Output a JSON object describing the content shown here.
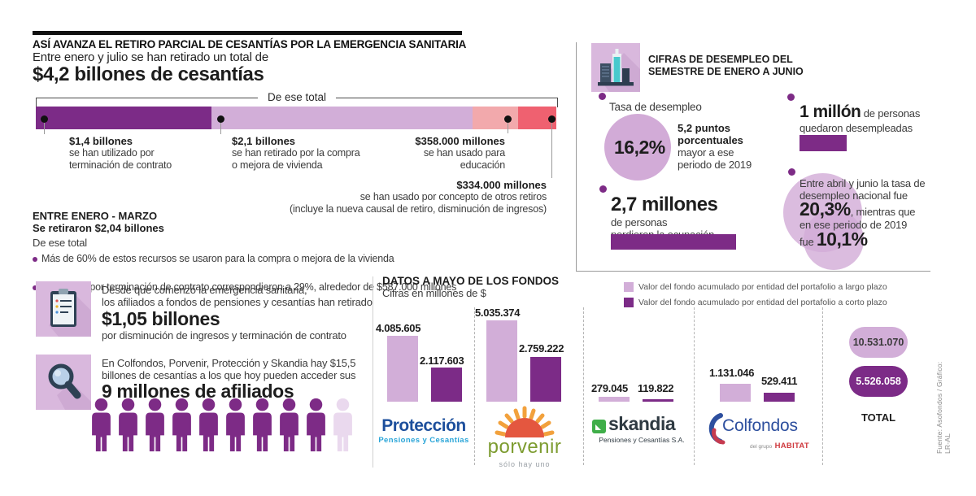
{
  "header": {
    "title": "ASÍ AVANZA EL RETIRO PARCIAL DE CESANTÍAS POR LA EMERGENCIA SANITARIA",
    "subtitle": "Entre enero y julio se han retirado un total de",
    "total": "$4,2 billones de cesantías"
  },
  "withdrawals": {
    "bracket_label": "De ese total",
    "segments": [
      {
        "amount": "$1,4 billones",
        "desc": [
          "se han utilizado por",
          "terminación de contrato"
        ]
      },
      {
        "amount": "$2,1 billones",
        "desc": [
          "se han retirado por la compra",
          "o mejora de vivienda"
        ]
      },
      {
        "amount": "$358.000 millones",
        "desc": [
          "se han usado para",
          "educación"
        ]
      },
      {
        "amount": "$334.000 millones",
        "desc": [
          "se han usado por concepto de otros retiros",
          "(incluye la nueva causal de retiro, disminución de ingresos)"
        ]
      }
    ]
  },
  "q1": {
    "title": "ENTRE ENERO - MARZO",
    "amount_line": "Se retiraron $2,04 billones",
    "subtitle": "De ese total",
    "bullets": [
      "Más de 60% de estos recursos se usaron para la compra o mejora de la vivienda",
      "Los retiros por terminación de contrato correspondieron a 29%, alrededor de $587.000 millones"
    ]
  },
  "unemployment": {
    "title_lines": [
      "CIFRAS DE DESEMPLEO DEL",
      "SEMESTRE DE ENERO A JUNIO"
    ],
    "rate": {
      "label": "Tasa de desempleo",
      "value": "16,2%",
      "bold1": "5,2 puntos",
      "bold2": "porcentuales",
      "l1": "mayor a ese",
      "l2": "periodo de 2019"
    },
    "million": {
      "big": "1 millón",
      "rest": " de personas",
      "line2": "quedaron desempleadas"
    },
    "occupation": {
      "big": "2,7 millones",
      "l1": "de personas",
      "l2": "perdieron la ocupación"
    },
    "q2": {
      "l1": "Entre abril y junio la tasa de",
      "l2": "desempleo nacional fue",
      "big1": "20,3%",
      "mid": ", mientras que",
      "l3": "en ese periodo de 2019",
      "pre": "fue ",
      "big2": "10,1%"
    }
  },
  "cards": [
    {
      "icon": "clipboard-icon",
      "l1": "Desde que comenzó la emergencia sanitaria,",
      "l2": "los afiliados a fondos de pensiones y cesantías han retirado",
      "big": "$1,05 billones",
      "l3": "por disminución de ingresos y terminación de contrato"
    },
    {
      "icon": "magnifier-icon",
      "l1": "En Colfondos, Porvenir, Protección y Skandia hay $15,5",
      "l2": "billones de cesantías a los que hoy pueden acceder sus",
      "big": "9 millones de afiliados"
    }
  ],
  "people": {
    "dark": 9,
    "light": 1,
    "dark_color": "#7d2b86",
    "light_color": "#ead9ee"
  },
  "funds": {
    "title": "DATOS A MAYO DE LOS FONDOS",
    "subtitle": "Cifras en millones de $",
    "total_label": "TOTAL",
    "logos": {
      "proteccion": {
        "name": "Protección",
        "sub": "Pensiones y Cesantías",
        "color": "#1d4f9c",
        "sub_color": "#2aa5d8"
      },
      "porvenir": {
        "name": "porvenir",
        "sub": "sólo hay uno",
        "color": "#7d9c30"
      },
      "skandia": {
        "name": "skandia",
        "sub": "Pensiones y Cesantías S.A.",
        "color": "#2f3a42",
        "icon_color": "#3fae49"
      },
      "colfondos": {
        "name": "Colfondos",
        "sub_small": "del grupo",
        "sub_bold": "HABITAT",
        "color": "#2d4f9e",
        "habitat_color": "#cf3a3f"
      }
    }
  },
  "source": {
    "text": "Fuente: Asofondos / Gráfico: LR-AL"
  },
  "colors": {
    "long_purple": "#d2aed8",
    "short_purple": "#7c2b87",
    "pink": "#f2a9ac",
    "red": "#ef6170",
    "tile_bg": "#d9b8dd",
    "circle_purple": "#d2abd7"
  },
  "chart_data": [
    {
      "type": "bar",
      "subtype": "horizontal-stacked",
      "title": "De ese total",
      "context_total": "$4,2 billones de cesantías",
      "categories": [
        "Terminación de contrato",
        "Compra o mejora de vivienda",
        "Educación",
        "Otros retiros"
      ],
      "value_labels": [
        "$1,4 billones",
        "$2,1 billones",
        "$358.000 millones",
        "$334.000 millones"
      ],
      "values_pct": [
        33.7,
        50.2,
        8.7,
        7.4
      ],
      "colors": [
        "#7c2b87",
        "#d2aed8",
        "#f2a9ac",
        "#ef6170"
      ]
    },
    {
      "type": "bar",
      "title": "DATOS A MAYO DE LOS FONDOS",
      "subtitle": "Cifras en millones de $",
      "categories": [
        "Protección",
        "Porvenir",
        "Skandia",
        "Colfondos"
      ],
      "legend_position": "top-right",
      "series": [
        {
          "name": "Valor del fondo acumulado por entidad del portafolio a largo plazo",
          "color": "#d2aed8",
          "values": [
            4085605,
            5035374,
            279045,
            1131046
          ],
          "labels": [
            "4.085.605",
            "5.035.374",
            "279.045",
            "1.131.046"
          ],
          "total": 10531070,
          "total_label": "10.531.070"
        },
        {
          "name": "Valor del fondo acumulado por entidad del portafolio a corto plazo",
          "color": "#7c2b87",
          "values": [
            2117603,
            2759222,
            119822,
            529411
          ],
          "labels": [
            "2.117.603",
            "2.759.222",
            "119.822",
            "529.411"
          ],
          "total": 5526058,
          "total_label": "5.526.058"
        }
      ]
    }
  ]
}
